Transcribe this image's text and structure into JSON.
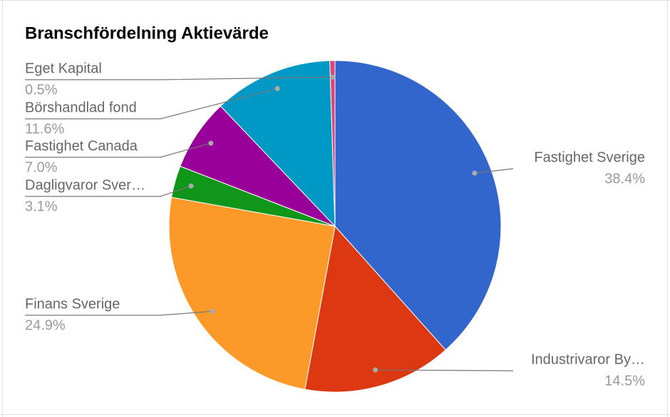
{
  "chart_data": {
    "type": "pie",
    "title": "Branschfördelning Aktievärde",
    "categories": [
      "Fastighet Sverige",
      "Industrivaror By…",
      "Finans Sverige",
      "Dagligvaror Sver…",
      "Fastighet Canada",
      "Börshandlad fond",
      "Eget Kapital"
    ],
    "values": [
      38.4,
      14.5,
      24.9,
      3.1,
      7.0,
      11.6,
      0.5
    ],
    "value_labels": [
      "38.4%",
      "14.5%",
      "24.9%",
      "3.1%",
      "7.0%",
      "11.6%",
      "0.5%"
    ],
    "colors": [
      "#3366cc",
      "#dc3912",
      "#fb9a28",
      "#109618",
      "#990099",
      "#0099c6",
      "#dd4477"
    ]
  }
}
